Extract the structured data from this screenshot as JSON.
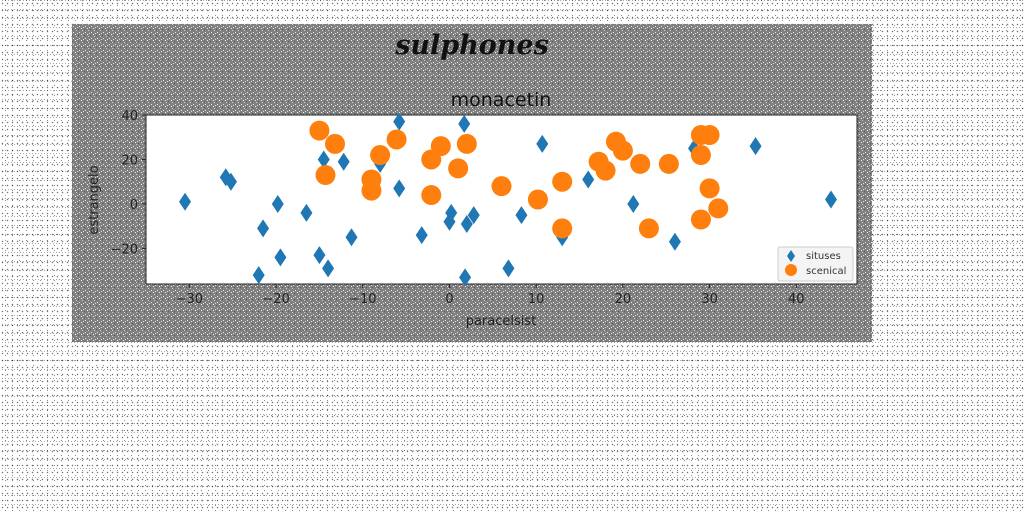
{
  "chart_data": {
    "type": "scatter",
    "suptitle": "sulphones",
    "title": "monacetin",
    "xlabel": "paracelsist",
    "ylabel": "estrangelo",
    "xlim": [
      -35,
      47
    ],
    "ylim": [
      -36,
      40
    ],
    "xticks": [
      -30,
      -20,
      -10,
      0,
      10,
      20,
      30,
      40
    ],
    "yticks": [
      -20,
      0,
      20,
      40
    ],
    "grid": false,
    "legend_position": "lower-right",
    "series": [
      {
        "name": "situses",
        "marker": "diamond",
        "color": "#1f77b4",
        "points": [
          [
            -30.5,
            1
          ],
          [
            -25.8,
            12
          ],
          [
            -25.2,
            10
          ],
          [
            -21.5,
            -11
          ],
          [
            -22,
            -32
          ],
          [
            -19.8,
            0
          ],
          [
            -19.5,
            -24
          ],
          [
            -16.5,
            -4
          ],
          [
            -15,
            -23
          ],
          [
            -14.5,
            20
          ],
          [
            -14,
            -29
          ],
          [
            -12.2,
            19
          ],
          [
            -11.3,
            -15
          ],
          [
            -8,
            18
          ],
          [
            -5.8,
            37
          ],
          [
            -5.8,
            7
          ],
          [
            -3.2,
            -14
          ],
          [
            0,
            -8
          ],
          [
            0.2,
            -4
          ],
          [
            1.7,
            36
          ],
          [
            1.8,
            -33
          ],
          [
            2,
            -9
          ],
          [
            2.8,
            -5
          ],
          [
            6.8,
            -29
          ],
          [
            8.3,
            -5
          ],
          [
            10.7,
            27
          ],
          [
            13,
            -15
          ],
          [
            16,
            11
          ],
          [
            21.2,
            0
          ],
          [
            26,
            -17
          ],
          [
            28.2,
            25
          ],
          [
            35.3,
            26
          ],
          [
            44,
            2
          ]
        ]
      },
      {
        "name": "scenical",
        "marker": "circle",
        "color": "#ff7f0e",
        "points": [
          [
            -15,
            33
          ],
          [
            -13.2,
            27
          ],
          [
            -14.3,
            13
          ],
          [
            -9,
            11
          ],
          [
            -9,
            6
          ],
          [
            -8,
            22
          ],
          [
            -6.1,
            29
          ],
          [
            -2.1,
            20
          ],
          [
            -2.1,
            4
          ],
          [
            -1,
            26
          ],
          [
            1,
            16
          ],
          [
            2,
            27
          ],
          [
            6,
            8
          ],
          [
            10.2,
            2
          ],
          [
            13,
            10
          ],
          [
            13,
            -11
          ],
          [
            17.2,
            19
          ],
          [
            18,
            15
          ],
          [
            19.2,
            28
          ],
          [
            20,
            24
          ],
          [
            22,
            18
          ],
          [
            23,
            -11
          ],
          [
            25.3,
            18
          ],
          [
            29,
            31
          ],
          [
            30,
            31
          ],
          [
            29,
            22
          ],
          [
            30,
            7
          ],
          [
            29,
            -7
          ],
          [
            31,
            -2
          ]
        ]
      }
    ]
  }
}
